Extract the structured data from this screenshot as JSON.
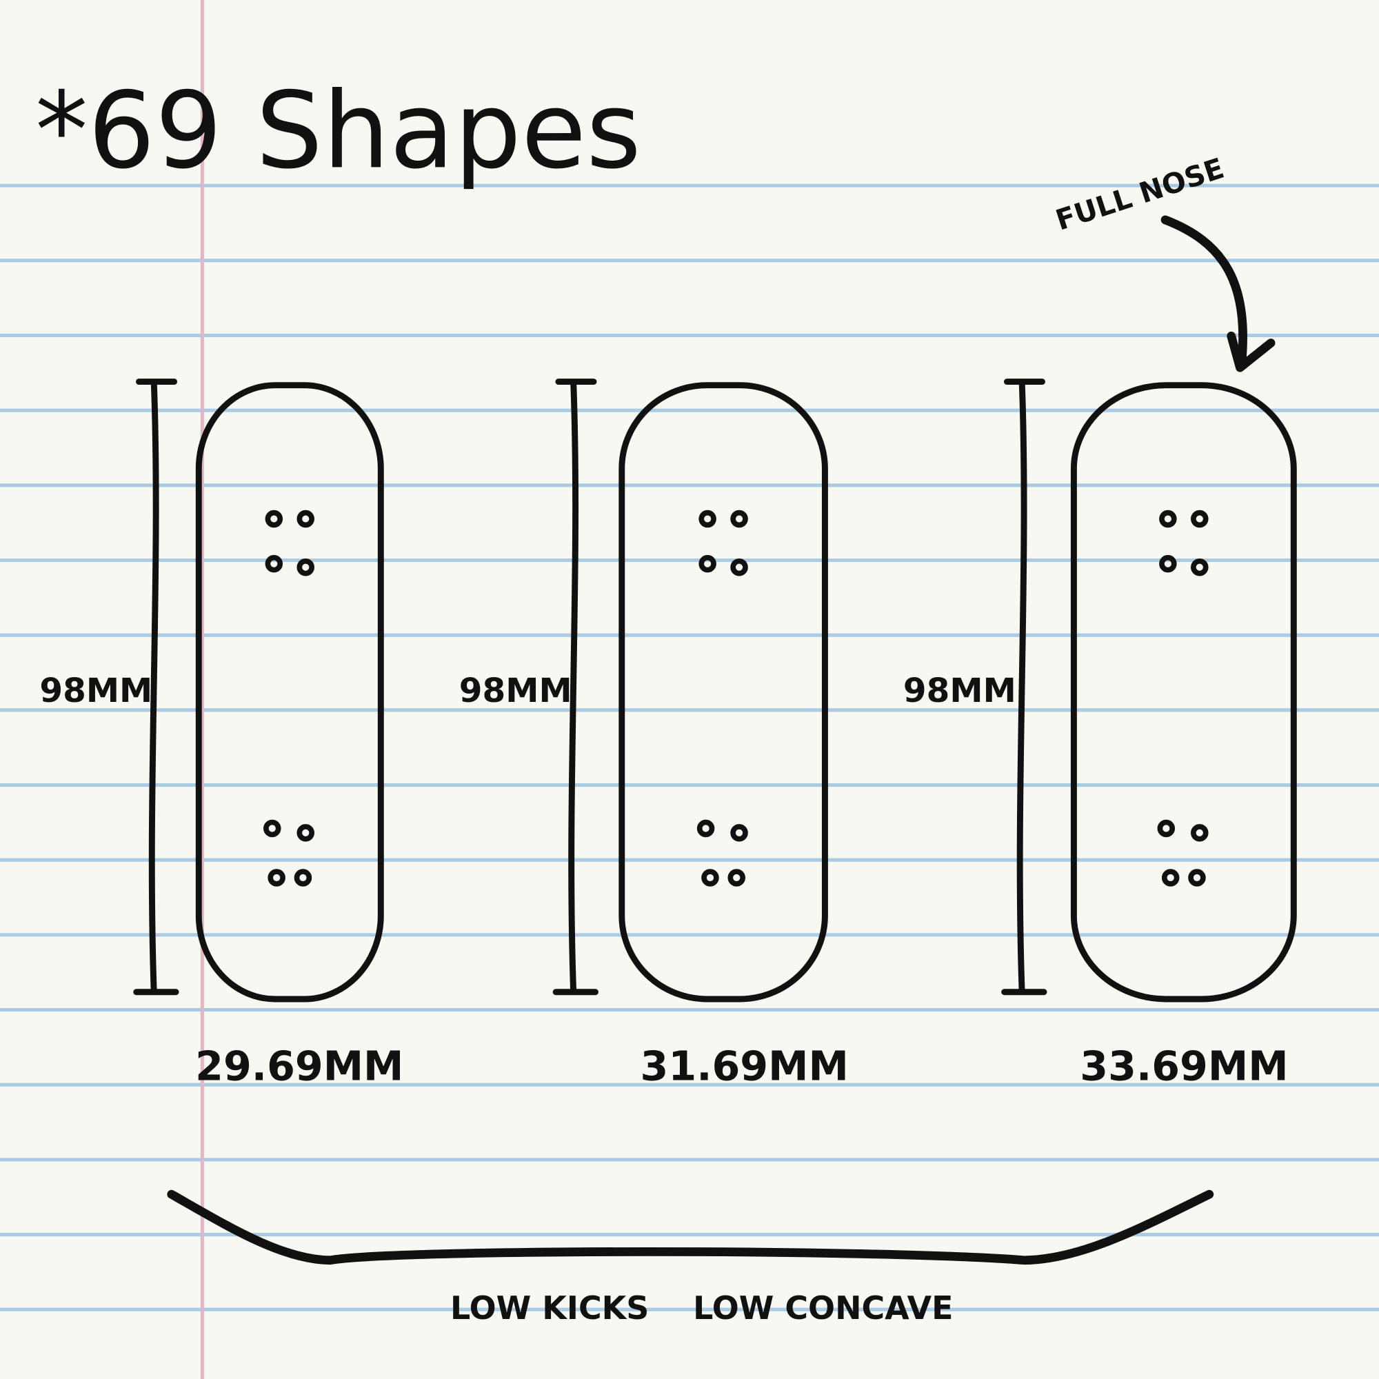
{
  "title": "*69 Shapes",
  "annotation": "FULL NOSE",
  "boards": [
    {
      "length": "98MM",
      "width": "29.69MM"
    },
    {
      "length": "98MM",
      "width": "31.69MM"
    },
    {
      "length": "98MM",
      "width": "33.69MM"
    }
  ],
  "profile_labels": [
    "LOW KICKS",
    "LOW CONCAVE"
  ],
  "colors": {
    "paper": "#f8f8f3",
    "rule_line": "#a9cbe3",
    "margin_line": "#e7b4c4",
    "ink": "#111111"
  }
}
